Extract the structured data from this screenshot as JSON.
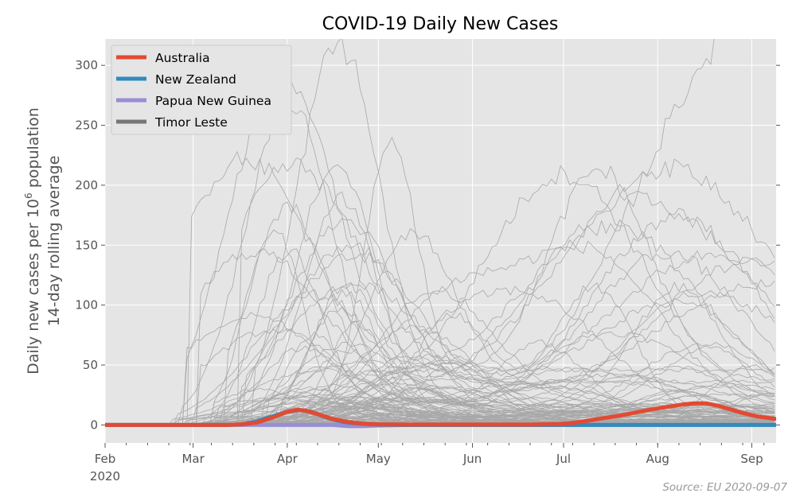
{
  "chart_data": {
    "type": "line",
    "title": "COVID-19 Daily New Cases",
    "ylabel_line1": "Daily new cases per 10",
    "ylabel_sup": "6",
    "ylabel_line1_end": " population",
    "ylabel_line2": "14-day rolling average",
    "xlabel": "",
    "x_unit": "days since 1 Feb 2020",
    "ylim": [
      -15,
      322
    ],
    "xlim": [
      0,
      221
    ],
    "grid": true,
    "legend_position": "top-left",
    "source": "Source: EU 2020-09-07",
    "x_ticks": [
      {
        "label": "Feb",
        "sub": "2020",
        "x": 0
      },
      {
        "label": "Mar",
        "sub": "",
        "x": 29
      },
      {
        "label": "Apr",
        "sub": "",
        "x": 60
      },
      {
        "label": "May",
        "sub": "",
        "x": 90
      },
      {
        "label": "Jun",
        "sub": "",
        "x": 121
      },
      {
        "label": "Jul",
        "sub": "",
        "x": 151
      },
      {
        "label": "Aug",
        "sub": "",
        "x": 182
      },
      {
        "label": "Sep",
        "sub": "",
        "x": 213
      }
    ],
    "y_ticks": [
      0,
      50,
      100,
      150,
      200,
      250,
      300
    ],
    "series": [
      {
        "name": "Australia",
        "color": "#E24A33",
        "x": [
          0,
          40,
          45,
          50,
          55,
          60,
          63,
          66,
          70,
          75,
          80,
          85,
          90,
          100,
          120,
          140,
          150,
          155,
          160,
          165,
          170,
          175,
          180,
          185,
          190,
          194,
          198,
          202,
          206,
          210,
          215,
          221
        ],
        "values": [
          0,
          0,
          0.5,
          2,
          6,
          11,
          12.5,
          12,
          9,
          5,
          2.5,
          1,
          0.5,
          0.3,
          0.3,
          0.3,
          0.8,
          2,
          4,
          6,
          8,
          10.5,
          13,
          15,
          17,
          18,
          18,
          16,
          13,
          10,
          7,
          5
        ]
      },
      {
        "name": "New Zealand",
        "color": "#348ABD",
        "x": [
          0,
          40,
          45,
          50,
          55,
          60,
          64,
          68,
          72,
          76,
          80,
          85,
          90,
          100,
          221
        ],
        "values": [
          0,
          0,
          0.5,
          3,
          7,
          11,
          12.5,
          11,
          7,
          4,
          2,
          1,
          0.3,
          0,
          0
        ]
      },
      {
        "name": "Papua New Guinea",
        "color": "#988ED5",
        "x": [
          0,
          75,
          80,
          85,
          90,
          100,
          221
        ],
        "values": [
          0,
          0,
          -1,
          -1,
          -0.5,
          0,
          0
        ]
      },
      {
        "name": "Timor Leste",
        "color": "#777777",
        "x": [
          0,
          221
        ],
        "values": [
          0,
          0
        ]
      }
    ]
  }
}
